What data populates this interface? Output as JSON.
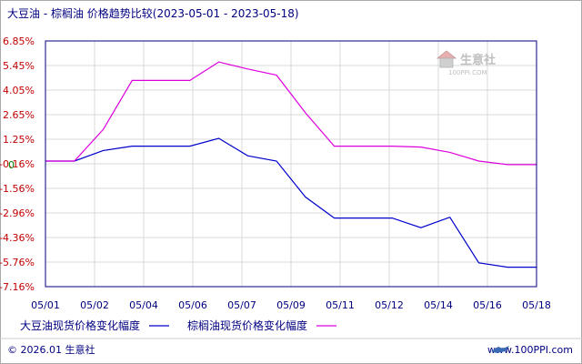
{
  "chart_data": {
    "type": "line",
    "title": "大豆油 - 棕榈油 价格趋势比较(2023-05-01 - 2023-05-18)",
    "x": [
      "05/01",
      "05/02",
      "05/03",
      "05/04",
      "05/05",
      "05/06",
      "05/07",
      "05/08",
      "05/09",
      "05/10",
      "05/11",
      "05/12",
      "05/13",
      "05/14",
      "05/15",
      "05/16",
      "05/17",
      "05/18"
    ],
    "x_tick_labels": [
      "05/01",
      "05/02",
      "05/04",
      "05/06",
      "05/07",
      "05/09",
      "05/11",
      "05/12",
      "05/14",
      "05/16",
      "05/18"
    ],
    "y_tick_labels": [
      "6.85%",
      "5.45%",
      "4.05%",
      "2.65%",
      "1.25%",
      "-0.16%",
      "-1.56%",
      "-2.96%",
      "-4.36%",
      "-5.76%",
      "-7.16%"
    ],
    "y_zero_marker": "0",
    "ylim": [
      -7.16,
      6.85
    ],
    "grid": true,
    "legend_position": "bottom-left",
    "series": [
      {
        "name": "大豆油现货价格变化幅度",
        "color": "#0000cc",
        "values": [
          0,
          0,
          0.6,
          0.85,
          0.85,
          0.85,
          1.3,
          0.3,
          0,
          -2.05,
          -3.25,
          -3.25,
          -3.25,
          -3.8,
          -3.2,
          -5.8,
          -6.05,
          -6.05
        ]
      },
      {
        "name": "棕榈油现货价格变化幅度",
        "color": "#dd00dd",
        "values": [
          0,
          0,
          1.8,
          4.6,
          4.6,
          4.6,
          5.65,
          5.25,
          4.9,
          2.75,
          0.85,
          0.85,
          0.85,
          0.8,
          0.5,
          0,
          -0.2,
          -0.2
        ]
      }
    ]
  },
  "footer": {
    "copyright": "© 2026.01 生意社",
    "website": "www.100PPI.com"
  },
  "logo": {
    "name": "生意社",
    "url": "100PPI.COM",
    "color": "#c0c0c0"
  },
  "colors": {
    "axis": "#000080",
    "grid": "#d0d0d0",
    "border": "#aaaaaa",
    "tick_label": "#c00000",
    "zero_label": "#008000"
  }
}
